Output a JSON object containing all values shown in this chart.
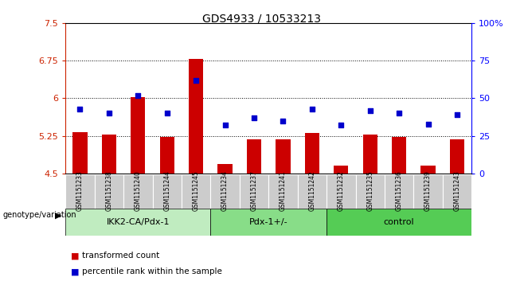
{
  "title": "GDS4933 / 10533213",
  "samples": [
    "GSM1151233",
    "GSM1151238",
    "GSM1151240",
    "GSM1151244",
    "GSM1151245",
    "GSM1151234",
    "GSM1151237",
    "GSM1151241",
    "GSM1151242",
    "GSM1151232",
    "GSM1151235",
    "GSM1151236",
    "GSM1151239",
    "GSM1151243"
  ],
  "transformed_count": [
    5.32,
    5.27,
    6.02,
    5.22,
    6.79,
    4.68,
    5.18,
    5.18,
    5.3,
    4.65,
    5.27,
    5.22,
    4.65,
    5.18
  ],
  "percentile_rank": [
    43,
    40,
    52,
    40,
    62,
    32,
    37,
    35,
    43,
    32,
    42,
    40,
    33,
    39
  ],
  "groups": [
    {
      "name": "IKK2-CA/Pdx-1",
      "start": 0,
      "end": 5
    },
    {
      "name": "Pdx-1+/-",
      "start": 5,
      "end": 9
    },
    {
      "name": "control",
      "start": 9,
      "end": 14
    }
  ],
  "group_colors": [
    "#c0ecc0",
    "#88dd88",
    "#55cc55"
  ],
  "ylim_left": [
    4.5,
    7.5
  ],
  "ylim_right": [
    0,
    100
  ],
  "yticks_left": [
    4.5,
    5.25,
    6.0,
    6.75,
    7.5
  ],
  "yticks_right": [
    0,
    25,
    50,
    75,
    100
  ],
  "ytick_labels_left": [
    "4.5",
    "5.25",
    "6",
    "6.75",
    "7.5"
  ],
  "ytick_labels_right": [
    "0",
    "25",
    "50",
    "75",
    "100%"
  ],
  "hlines": [
    5.25,
    6.0,
    6.75
  ],
  "bar_color": "#cc0000",
  "dot_color": "#0000cc",
  "bar_width": 0.5,
  "dot_size": 22,
  "legend_bar_label": "transformed count",
  "legend_dot_label": "percentile rank within the sample",
  "genotype_label": "genotype/variation",
  "sample_box_color": "#cccccc",
  "title_fontsize": 10
}
